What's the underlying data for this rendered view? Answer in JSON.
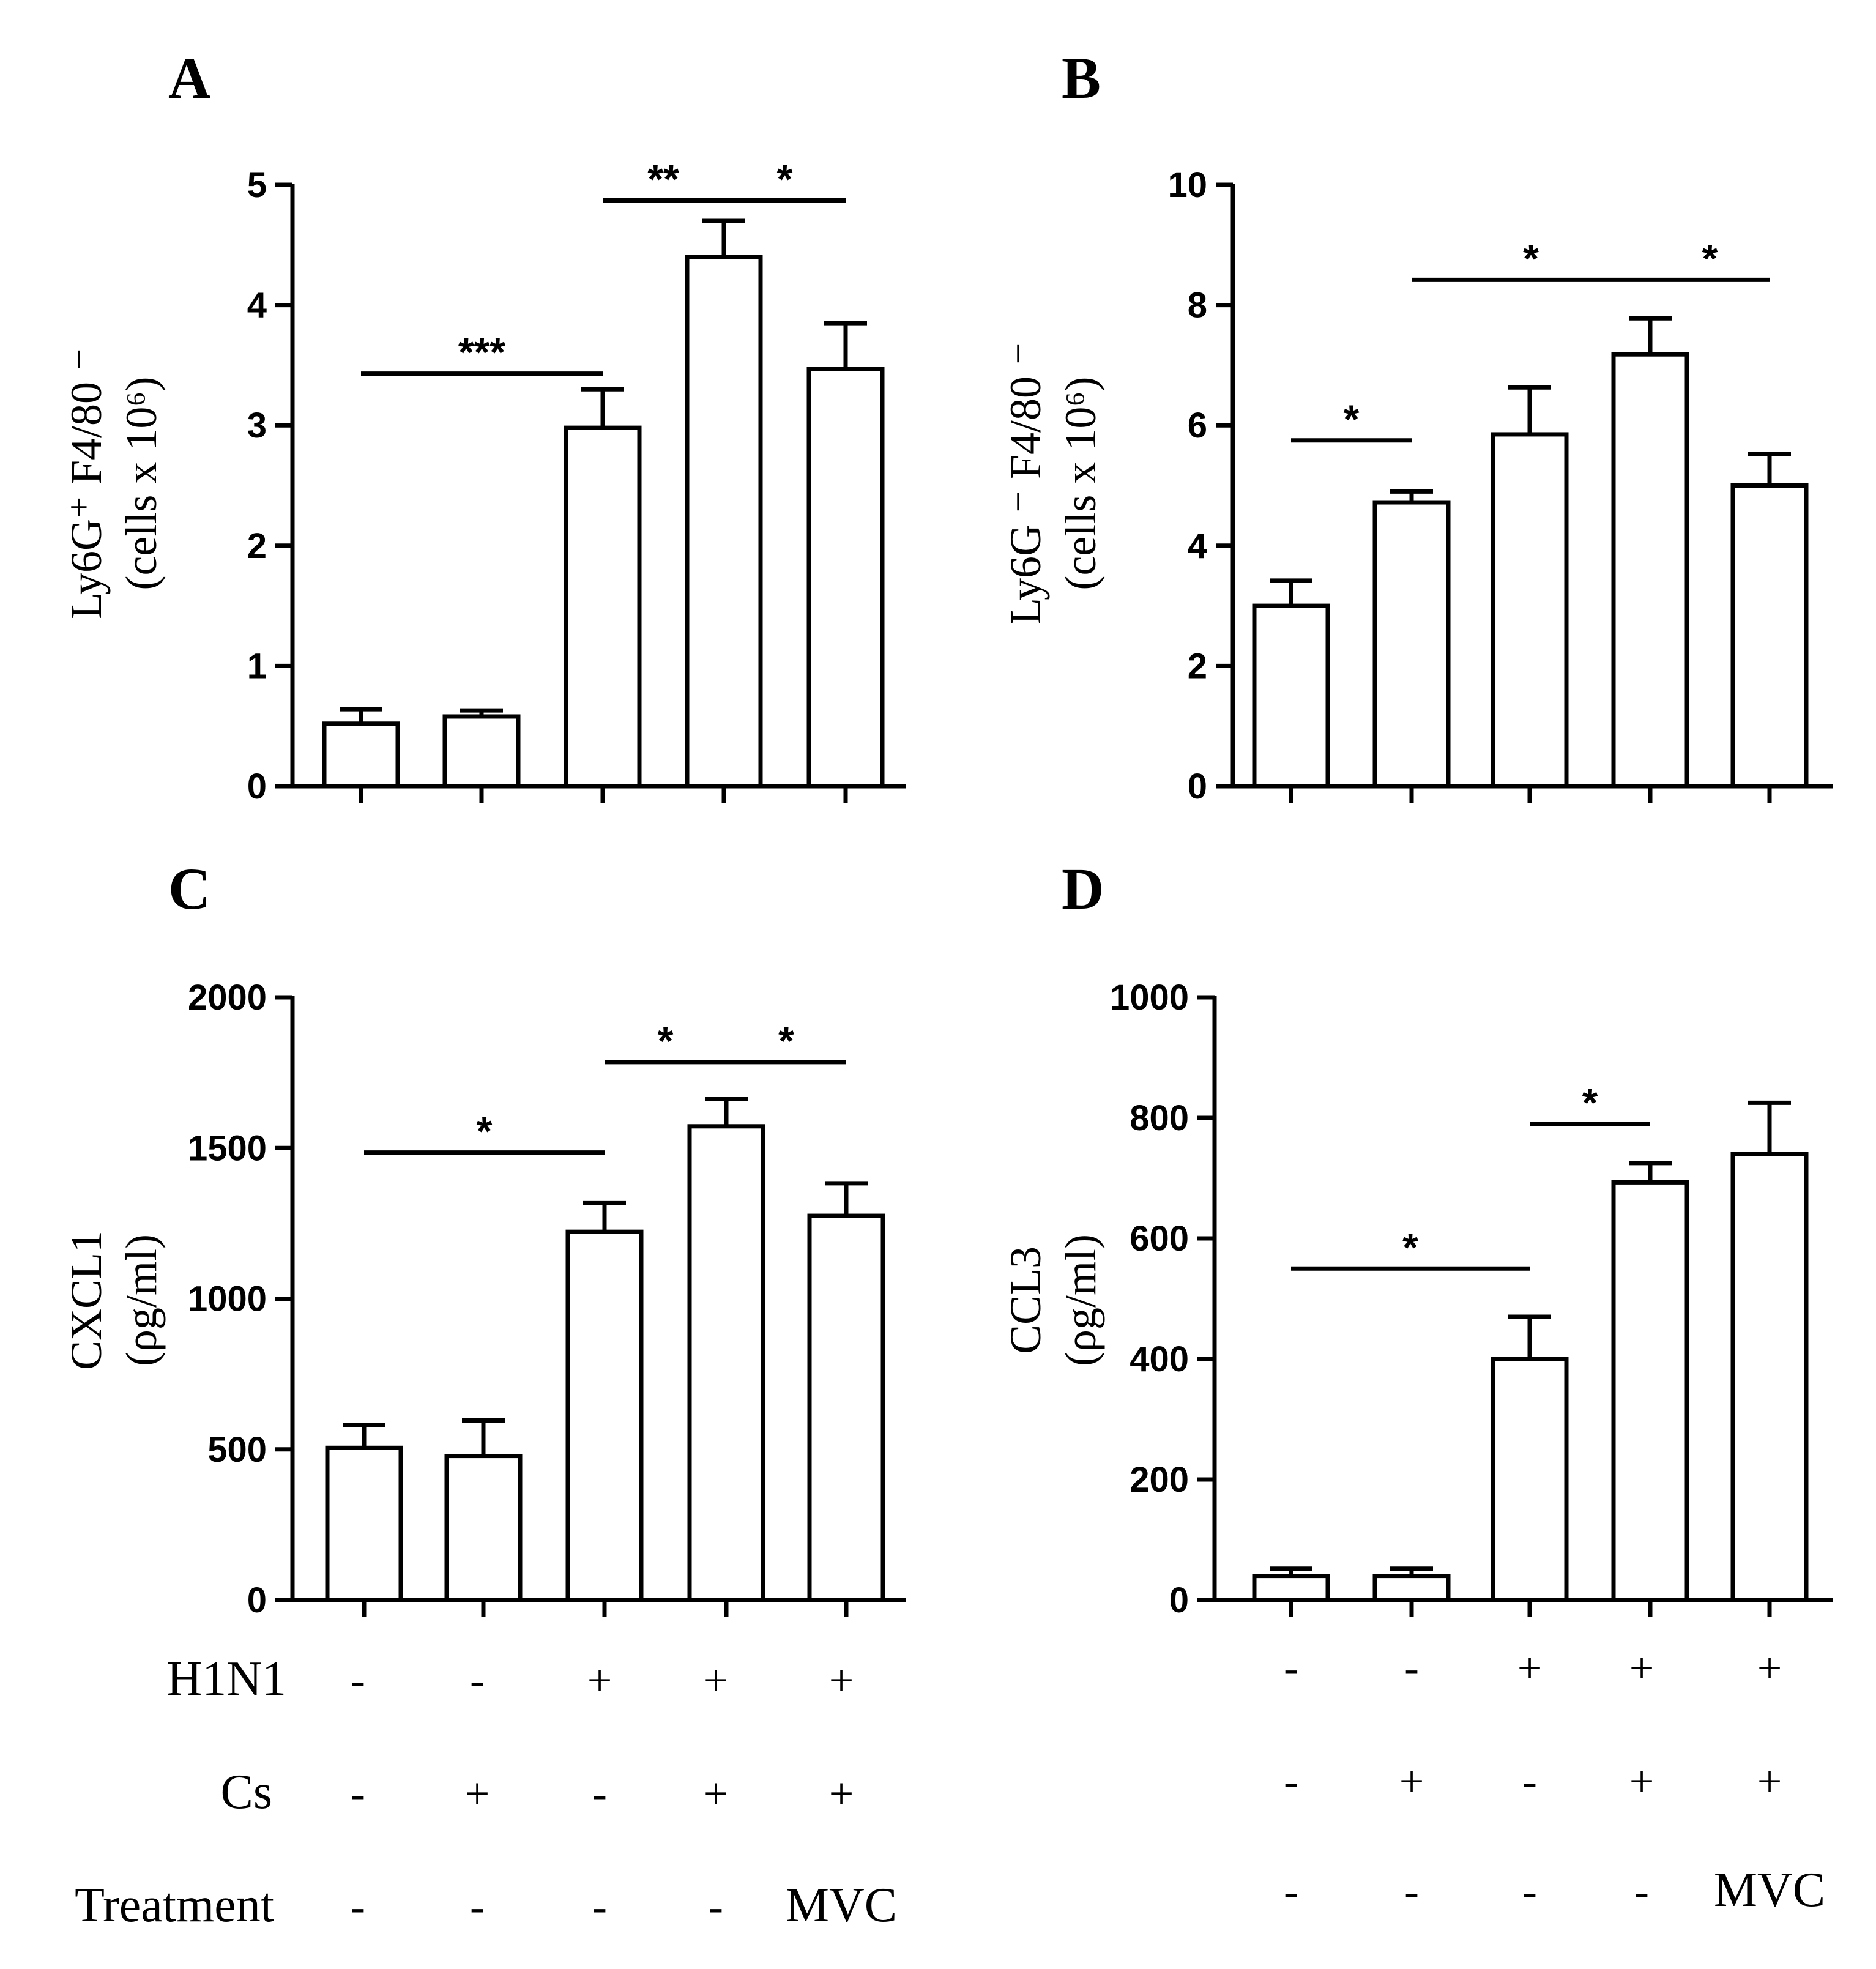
{
  "figure": {
    "panel_labels": [
      "A",
      "B",
      "C",
      "D"
    ],
    "row_labels": [
      "H1N1",
      "Cs",
      "Treatment"
    ],
    "bottom_left": {
      "H1N1": [
        "-",
        "-",
        "+",
        "+",
        "+"
      ],
      "Cs": [
        "-",
        "+",
        "-",
        "+",
        "+"
      ],
      "Treatment": [
        "-",
        "-",
        "-",
        "-",
        "MVC"
      ]
    },
    "bottom_right": {
      "H1N1": [
        "-",
        "-",
        "+",
        "+",
        "+"
      ],
      "Cs": [
        "-",
        "+",
        "-",
        "+",
        "+"
      ],
      "Treatment": [
        "-",
        "-",
        "-",
        "-",
        "MVC"
      ]
    }
  },
  "chart_data": [
    {
      "panel": "A",
      "type": "bar",
      "ylabel_line1": "Ly6G⁺ F4/80 ⁻",
      "ylabel_line2": "(cells x 10⁶)",
      "ylim": [
        0,
        5
      ],
      "yticks": [
        0,
        1,
        2,
        3,
        4,
        5
      ],
      "tick_labels": [
        "0",
        "1",
        "2",
        "3",
        "4",
        "5"
      ],
      "groups": [
        "1",
        "2",
        "3",
        "4",
        "5"
      ],
      "values": [
        0.52,
        0.58,
        2.98,
        4.4,
        3.47
      ],
      "errors": [
        0.12,
        0.05,
        0.32,
        0.3,
        0.38
      ],
      "significance": [
        {
          "from": 0,
          "to": 2,
          "y": 3.43,
          "label": "***"
        },
        {
          "from": 2,
          "to": 3,
          "y": 4.87,
          "label": "**"
        },
        {
          "from": 3,
          "to": 4,
          "y": 4.87,
          "label": "*"
        }
      ]
    },
    {
      "panel": "B",
      "type": "bar",
      "ylabel_line1": "Ly6G ⁻ F4/80 ⁻",
      "ylabel_line2": "(cells x 10⁶)",
      "ylim": [
        0,
        10
      ],
      "yticks": [
        0,
        2,
        4,
        6,
        8,
        10
      ],
      "tick_labels": [
        "0",
        "2",
        "4",
        "6",
        "8",
        "10"
      ],
      "groups": [
        "1",
        "2",
        "3",
        "4",
        "5"
      ],
      "values": [
        3.0,
        4.72,
        5.85,
        7.18,
        5.0
      ],
      "errors": [
        0.42,
        0.18,
        0.78,
        0.6,
        0.52
      ],
      "significance": [
        {
          "from": 0,
          "to": 1,
          "y": 5.75,
          "label": "*"
        },
        {
          "from": 1,
          "to": 3,
          "y": 8.42,
          "label": "*"
        },
        {
          "from": 3,
          "to": 4,
          "y": 8.42,
          "label": "*"
        }
      ]
    },
    {
      "panel": "C",
      "type": "bar",
      "ylabel_line1": "CXCL1",
      "ylabel_line2": "(ρg/ml)",
      "ylim": [
        0,
        2000
      ],
      "yticks": [
        0,
        500,
        1000,
        1500,
        2000
      ],
      "tick_labels": [
        "0",
        "500",
        "1000",
        "1500",
        "2000"
      ],
      "groups": [
        "1",
        "2",
        "3",
        "4",
        "5"
      ],
      "values": [
        505,
        478,
        1222,
        1572,
        1275
      ],
      "errors": [
        75,
        118,
        95,
        90,
        108
      ],
      "significance": [
        {
          "from": 0,
          "to": 2,
          "y": 1485,
          "label": "*"
        },
        {
          "from": 2,
          "to": 3,
          "y": 1785,
          "label": "*"
        },
        {
          "from": 3,
          "to": 4,
          "y": 1785,
          "label": "*"
        }
      ]
    },
    {
      "panel": "D",
      "type": "bar",
      "ylabel_line1": "CCL3",
      "ylabel_line2": "(ρg/ml)",
      "ylim": [
        0,
        1000
      ],
      "yticks": [
        0,
        200,
        400,
        600,
        800,
        1000
      ],
      "tick_labels": [
        "0",
        "200",
        "400",
        "600",
        "800",
        "1000"
      ],
      "groups": [
        "1",
        "2",
        "3",
        "4",
        "5"
      ],
      "values": [
        40,
        40,
        400,
        693,
        740
      ],
      "errors": [
        12,
        12,
        70,
        32,
        85
      ],
      "significance": [
        {
          "from": 0,
          "to": 2,
          "y": 550,
          "label": "*"
        },
        {
          "from": 2,
          "to": 3,
          "y": 790,
          "label": "*"
        }
      ]
    }
  ]
}
